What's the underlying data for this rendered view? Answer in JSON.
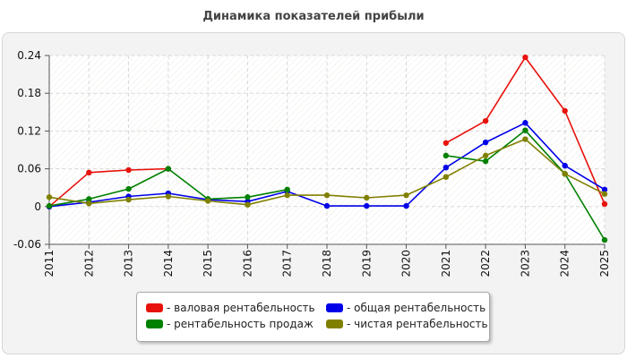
{
  "chart_data": {
    "type": "line",
    "title": "Динамика показателей прибыли",
    "xlabel": "",
    "ylabel": "",
    "x": [
      "2011",
      "2012",
      "2013",
      "2014",
      "2015",
      "2016",
      "2017",
      "2018",
      "2019",
      "2020",
      "2021",
      "2022",
      "2023",
      "2024",
      "2025"
    ],
    "ylim": [
      -0.06,
      0.24
    ],
    "yticks": [
      -0.06,
      0,
      0.06,
      0.12,
      0.18,
      0.24
    ],
    "ytick_labels": [
      "-0.06",
      "0",
      "0.06",
      "0.12",
      "0.18",
      "0.24"
    ],
    "grid": true,
    "legend_position": "bottom",
    "series": [
      {
        "name": "- валовая рентабельность",
        "color": "#e8120c",
        "values": [
          0.0,
          0.054,
          0.058,
          0.06,
          null,
          null,
          null,
          null,
          null,
          null,
          0.101,
          0.136,
          0.237,
          0.152,
          0.004
        ]
      },
      {
        "name": "- общая рентабельность",
        "color": "#0000e8",
        "values": [
          0.0,
          0.007,
          0.016,
          0.021,
          0.011,
          0.008,
          0.024,
          0.001,
          0.001,
          0.001,
          0.062,
          0.102,
          0.133,
          0.065,
          0.027
        ]
      },
      {
        "name": "- рентабельность продаж",
        "color": "#008000",
        "values": [
          0.001,
          0.012,
          0.028,
          0.06,
          0.012,
          0.015,
          0.027,
          null,
          null,
          null,
          0.081,
          0.072,
          0.121,
          0.052,
          -0.053
        ]
      },
      {
        "name": "- чистая рентабельность",
        "color": "#808000",
        "values": [
          0.015,
          0.005,
          0.011,
          0.016,
          0.009,
          0.003,
          0.018,
          0.018,
          0.014,
          0.018,
          0.047,
          0.081,
          0.107,
          0.052,
          0.02
        ]
      }
    ]
  }
}
